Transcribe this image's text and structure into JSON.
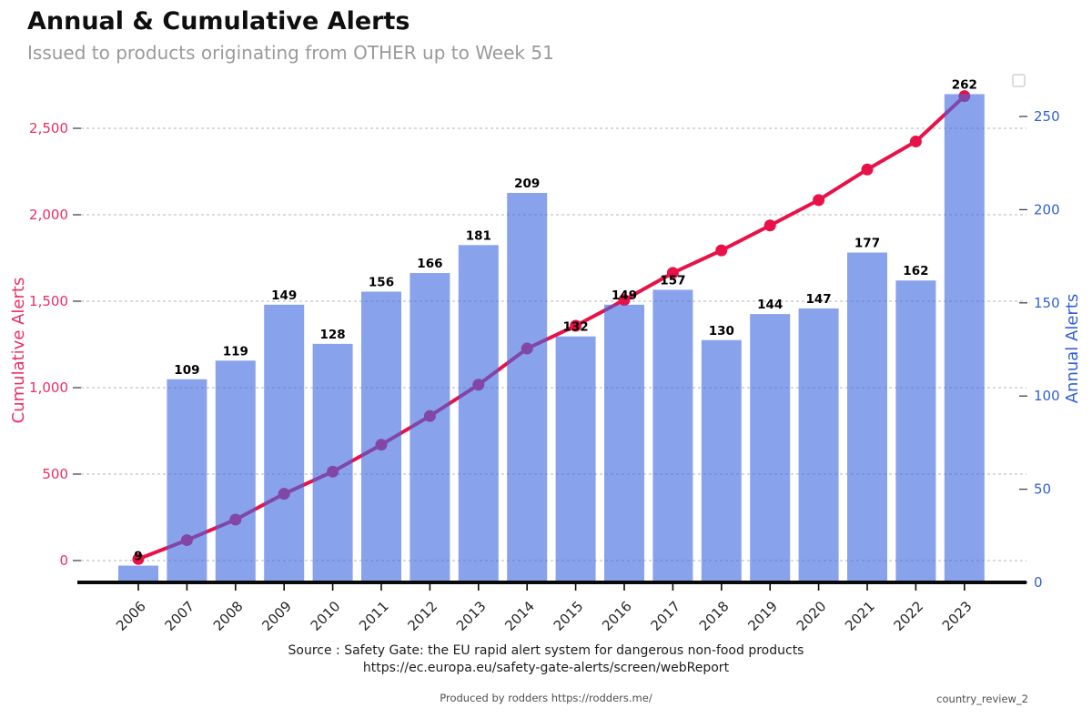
{
  "header": {
    "title": "Annual & Cumulative Alerts",
    "subtitle": "Issued to products originating from OTHER up to Week 51"
  },
  "chart_data": {
    "type": "bar",
    "title": "Annual & Cumulative Alerts",
    "subtitle": "Issued to products originating from OTHER up to Week 51",
    "categories": [
      "2006",
      "2007",
      "2008",
      "2009",
      "2010",
      "2011",
      "2012",
      "2013",
      "2014",
      "2015",
      "2016",
      "2017",
      "2018",
      "2019",
      "2020",
      "2021",
      "2022",
      "2023"
    ],
    "series": [
      {
        "name": "Annual Alerts",
        "type": "bar",
        "yaxis": "right",
        "color": "rgba(65,105,225,0.62)",
        "values": [
          9,
          109,
          119,
          149,
          128,
          156,
          166,
          181,
          209,
          132,
          149,
          157,
          130,
          144,
          147,
          177,
          162,
          262
        ]
      },
      {
        "name": "Cumulative Alerts",
        "type": "line",
        "yaxis": "left",
        "color": "#e81148",
        "values": [
          9,
          118,
          237,
          386,
          514,
          670,
          836,
          1017,
          1226,
          1358,
          1507,
          1664,
          1794,
          1938,
          2085,
          2262,
          2424,
          2686
        ]
      }
    ],
    "left_axis": {
      "label": "Cumulative Alerts",
      "color": "#ee2d62",
      "ticks": [
        0,
        500,
        1000,
        1500,
        2000,
        2500
      ],
      "tick_labels": [
        "0",
        "500",
        "1,000",
        "1,500",
        "2,000",
        "2,500"
      ],
      "range": [
        0,
        2500
      ]
    },
    "right_axis": {
      "label": "Annual Alerts",
      "color": "#2f5fd6",
      "ticks": [
        0,
        50,
        100,
        150,
        200,
        250
      ],
      "tick_labels": [
        "0",
        "50",
        "100",
        "150",
        "200",
        "250"
      ],
      "range": [
        0,
        273
      ]
    },
    "grid": {
      "horizontal": true,
      "style": "dashed",
      "color": "#b5b5b5"
    },
    "bar_labels": true,
    "x_tick_color": "#262626"
  },
  "footer": {
    "source_line1": "Source : Safety Gate: the EU rapid alert system for dangerous non-food products",
    "source_line2": "https://ec.europa.eu/safety-gate-alerts/screen/webReport",
    "produced_by": "Produced by rodders https://rodders.me/",
    "doc_ref": "country_review_2"
  }
}
